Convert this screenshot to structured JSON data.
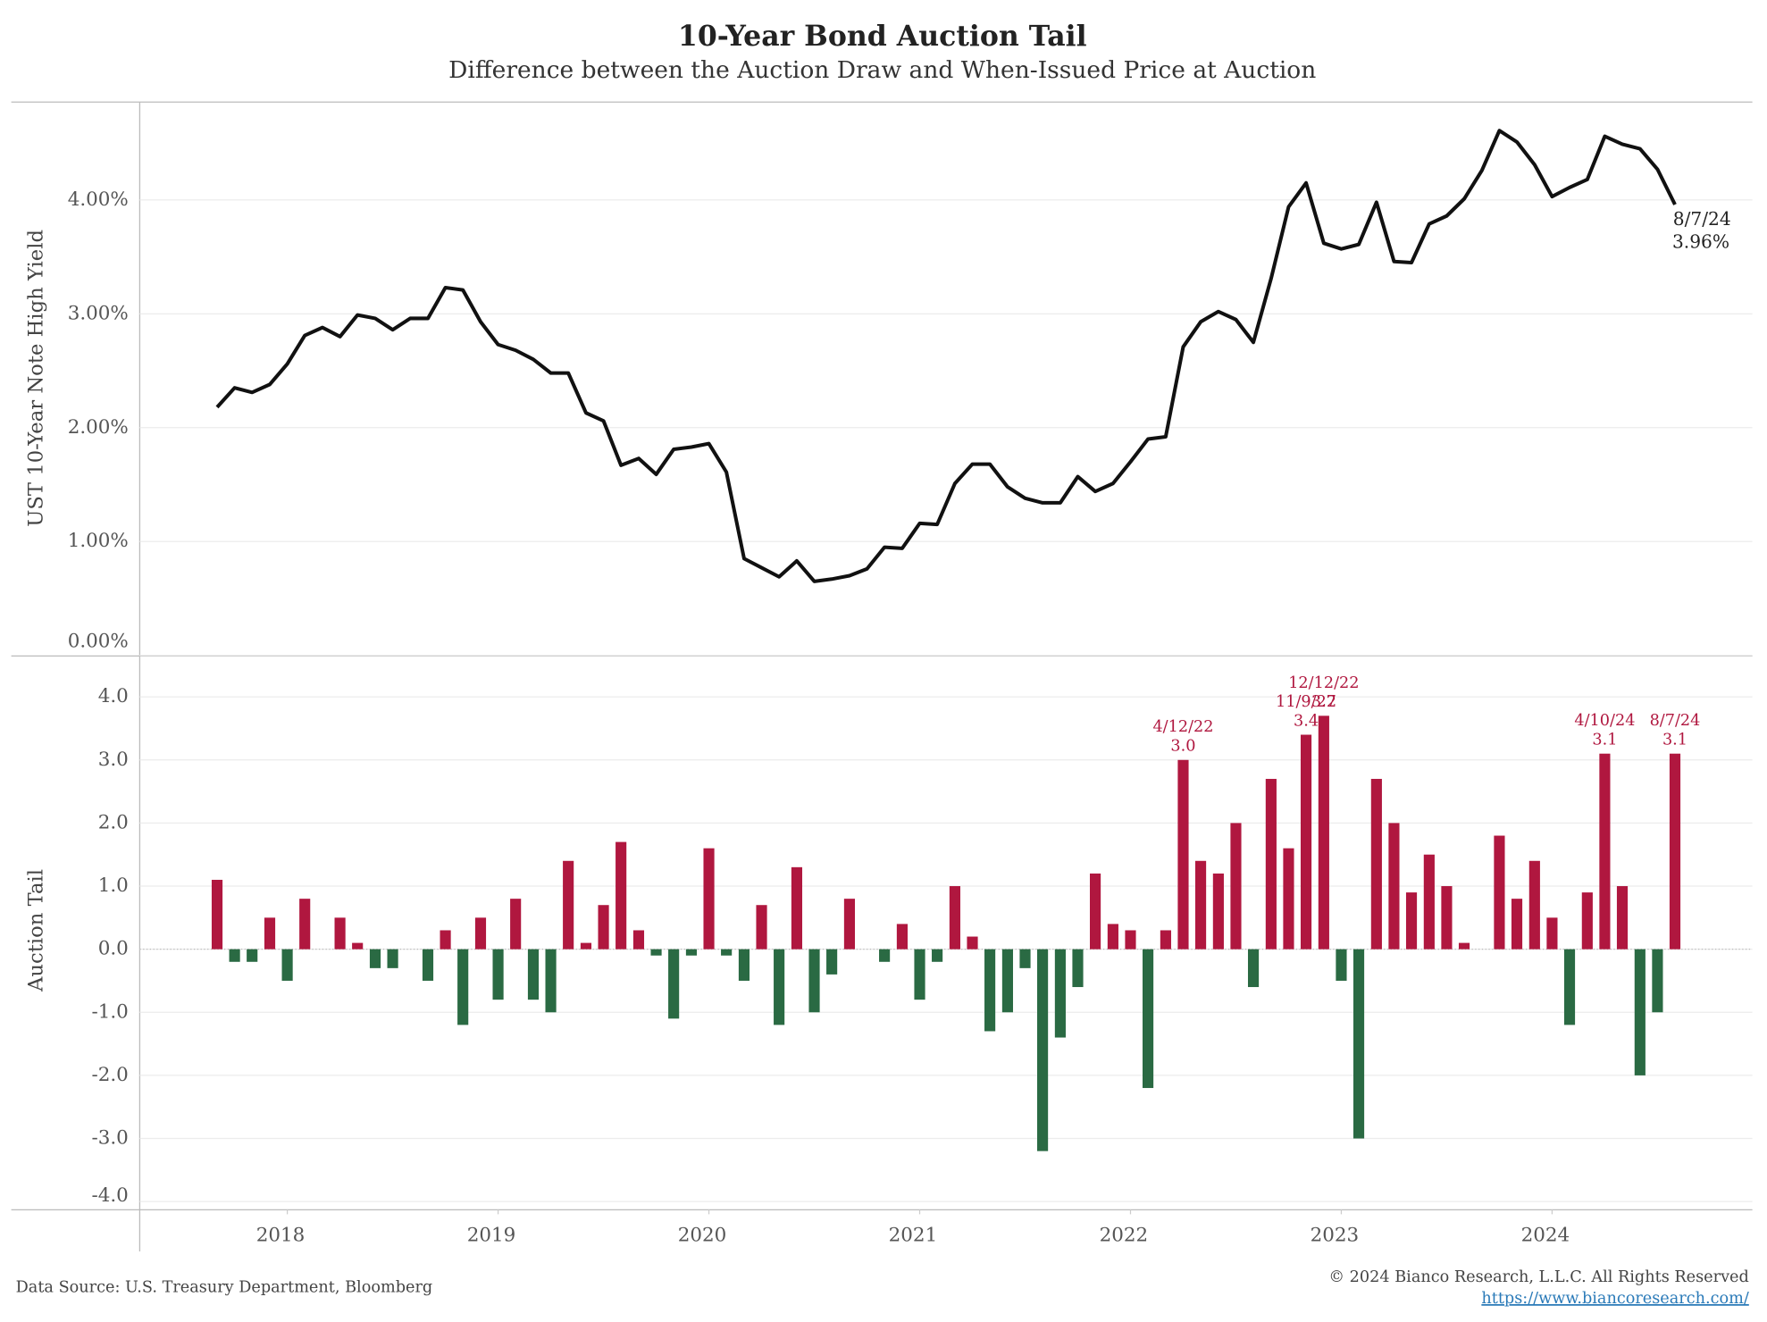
{
  "chart_data": [
    {
      "type": "line",
      "title": "10-Year Bond Auction Tail",
      "subtitle": "Difference between the Auction Draw and When-Issued Price at Auction",
      "y_label": "UST 10-Year Note High Yield",
      "color": "#111111",
      "grid": true,
      "x": [
        2017.667,
        2017.75,
        2017.833,
        2017.917,
        2018,
        2018.083,
        2018.167,
        2018.25,
        2018.333,
        2018.417,
        2018.5,
        2018.583,
        2018.667,
        2018.75,
        2018.833,
        2018.917,
        2019,
        2019.083,
        2019.167,
        2019.25,
        2019.333,
        2019.417,
        2019.5,
        2019.583,
        2019.667,
        2019.75,
        2019.833,
        2019.917,
        2020,
        2020.083,
        2020.167,
        2020.25,
        2020.333,
        2020.417,
        2020.5,
        2020.583,
        2020.667,
        2020.75,
        2020.833,
        2020.917,
        2021,
        2021.083,
        2021.167,
        2021.25,
        2021.333,
        2021.417,
        2021.5,
        2021.583,
        2021.667,
        2021.75,
        2021.833,
        2021.917,
        2022,
        2022.083,
        2022.167,
        2022.25,
        2022.333,
        2022.417,
        2022.5,
        2022.583,
        2022.667,
        2022.75,
        2022.833,
        2022.917,
        2023,
        2023.083,
        2023.167,
        2023.25,
        2023.333,
        2023.417,
        2023.5,
        2023.583,
        2023.667,
        2023.75,
        2023.833,
        2023.917,
        2024,
        2024.083,
        2024.167,
        2024.25,
        2024.333,
        2024.417,
        2024.5,
        2024.583
      ],
      "values": [
        2.18,
        2.35,
        2.31,
        2.38,
        2.56,
        2.81,
        2.88,
        2.8,
        2.99,
        2.96,
        2.86,
        2.96,
        2.96,
        3.23,
        3.21,
        2.93,
        2.73,
        2.68,
        2.6,
        2.48,
        2.48,
        2.13,
        2.06,
        1.67,
        1.73,
        1.59,
        1.81,
        1.83,
        1.86,
        1.61,
        0.85,
        0.77,
        0.69,
        0.83,
        0.65,
        0.67,
        0.7,
        0.76,
        0.95,
        0.94,
        1.16,
        1.15,
        1.51,
        1.68,
        1.68,
        1.48,
        1.38,
        1.34,
        1.34,
        1.57,
        1.44,
        1.51,
        1.7,
        1.9,
        1.92,
        2.71,
        2.93,
        3.02,
        2.95,
        2.75,
        3.31,
        3.94,
        4.15,
        3.62,
        3.57,
        3.61,
        3.98,
        3.46,
        3.45,
        3.79,
        3.86,
        4.01,
        4.26,
        4.61,
        4.51,
        4.31,
        4.03,
        4.11,
        4.18,
        4.56,
        4.49,
        4.45,
        4.27,
        3.96
      ],
      "end_label": {
        "date": "8/7/24",
        "value_label": "3.96%"
      },
      "xlim": [
        2017.3,
        2024.95
      ],
      "ylim": [
        0,
        4.86
      ],
      "yticks": [
        {
          "value": 0,
          "label": "0.00%"
        },
        {
          "value": 1,
          "label": "1.00%"
        },
        {
          "value": 2,
          "label": "2.00%"
        },
        {
          "value": 3,
          "label": "3.00%"
        },
        {
          "value": 4,
          "label": "4.00%"
        }
      ]
    },
    {
      "type": "bar",
      "y_label": "Auction Tail",
      "color_positive": "#b0173f",
      "color_negative": "#2a6a43",
      "grid": true,
      "x": [
        2017.667,
        2017.75,
        2017.833,
        2017.917,
        2018,
        2018.083,
        2018.167,
        2018.25,
        2018.333,
        2018.417,
        2018.5,
        2018.583,
        2018.667,
        2018.75,
        2018.833,
        2018.917,
        2019,
        2019.083,
        2019.167,
        2019.25,
        2019.333,
        2019.417,
        2019.5,
        2019.583,
        2019.667,
        2019.75,
        2019.833,
        2019.917,
        2020,
        2020.083,
        2020.167,
        2020.25,
        2020.333,
        2020.417,
        2020.5,
        2020.583,
        2020.667,
        2020.75,
        2020.833,
        2020.917,
        2021,
        2021.083,
        2021.167,
        2021.25,
        2021.333,
        2021.417,
        2021.5,
        2021.583,
        2021.667,
        2021.75,
        2021.833,
        2021.917,
        2022,
        2022.083,
        2022.167,
        2022.25,
        2022.333,
        2022.417,
        2022.5,
        2022.583,
        2022.667,
        2022.75,
        2022.833,
        2022.917,
        2023,
        2023.083,
        2023.167,
        2023.25,
        2023.333,
        2023.417,
        2023.5,
        2023.583,
        2023.667,
        2023.75,
        2023.833,
        2023.917,
        2024,
        2024.083,
        2024.167,
        2024.25,
        2024.333,
        2024.417,
        2024.5,
        2024.583
      ],
      "values": [
        1.1,
        -0.2,
        -0.2,
        0.5,
        -0.5,
        0.8,
        0,
        0.5,
        0.1,
        -0.3,
        -0.3,
        0,
        -0.5,
        0.3,
        -1.2,
        0.5,
        -0.8,
        0.8,
        -0.8,
        -1.0,
        1.4,
        0.1,
        0.7,
        1.7,
        0.3,
        -0.1,
        -1.1,
        -0.1,
        1.6,
        -0.1,
        -0.5,
        0.7,
        -1.2,
        1.3,
        -1.0,
        -0.4,
        0.8,
        0,
        -0.2,
        0.4,
        -0.8,
        -0.2,
        1.0,
        0.2,
        -1.3,
        -1.0,
        -0.3,
        -3.2,
        -1.4,
        -0.6,
        1.2,
        0.4,
        0.3,
        -2.2,
        0.3,
        3.0,
        1.4,
        1.2,
        2.0,
        -0.6,
        2.7,
        1.6,
        3.4,
        3.7,
        -0.5,
        -3.0,
        2.7,
        2.0,
        0.9,
        1.5,
        1.0,
        0.1,
        0,
        1.8,
        0.8,
        1.4,
        0.5,
        -1.2,
        0.9,
        3.1,
        1.0,
        -2.0,
        -1.0,
        3.1
      ],
      "value_labels": [
        null,
        null,
        null,
        null,
        null,
        null,
        null,
        null,
        null,
        null,
        null,
        null,
        null,
        null,
        null,
        null,
        null,
        null,
        null,
        null,
        null,
        null,
        null,
        null,
        null,
        null,
        null,
        null,
        null,
        null,
        null,
        null,
        null,
        null,
        null,
        null,
        null,
        null,
        null,
        null,
        null,
        null,
        null,
        null,
        null,
        null,
        null,
        null,
        null,
        null,
        null,
        null,
        null,
        null,
        null,
        "3.0",
        null,
        null,
        null,
        null,
        null,
        null,
        "3.4",
        "3.7",
        null,
        null,
        null,
        null,
        null,
        null,
        null,
        null,
        null,
        null,
        null,
        null,
        null,
        null,
        null,
        "3.1",
        null,
        null,
        null,
        "3.1"
      ],
      "date_labels": [
        null,
        null,
        null,
        null,
        null,
        null,
        null,
        null,
        null,
        null,
        null,
        null,
        null,
        null,
        null,
        null,
        null,
        null,
        null,
        null,
        null,
        null,
        null,
        null,
        null,
        null,
        null,
        null,
        null,
        null,
        null,
        null,
        null,
        null,
        null,
        null,
        null,
        null,
        null,
        null,
        null,
        null,
        null,
        null,
        null,
        null,
        null,
        null,
        null,
        null,
        null,
        null,
        null,
        null,
        null,
        "4/12/22",
        null,
        null,
        null,
        null,
        null,
        null,
        "11/9/22",
        "12/12/22",
        null,
        null,
        null,
        null,
        null,
        null,
        null,
        null,
        null,
        null,
        null,
        null,
        null,
        null,
        null,
        "4/10/24",
        null,
        null,
        null,
        "8/7/24"
      ],
      "xlim": [
        2017.3,
        2024.95
      ],
      "xticks": [
        2018,
        2019,
        2020,
        2021,
        2022,
        2023,
        2024
      ],
      "ylim": [
        -4.13,
        4.64
      ],
      "yticks": [
        {
          "value": -4,
          "label": "-4.0"
        },
        {
          "value": -3,
          "label": "-3.0"
        },
        {
          "value": -2,
          "label": "-2.0"
        },
        {
          "value": -1,
          "label": "-1.0"
        },
        {
          "value": 0,
          "label": "0.0"
        },
        {
          "value": 1,
          "label": "1.0"
        },
        {
          "value": 2,
          "label": "2.0"
        },
        {
          "value": 3,
          "label": "3.0"
        },
        {
          "value": 4,
          "label": "4.0"
        }
      ]
    }
  ],
  "footer": {
    "source": "Data Source: U.S. Treasury Department, Bloomberg",
    "copyright": "© 2024 Bianco Research, L.L.C. All Rights Reserved",
    "url": "https://www.biancoresearch.com/"
  }
}
